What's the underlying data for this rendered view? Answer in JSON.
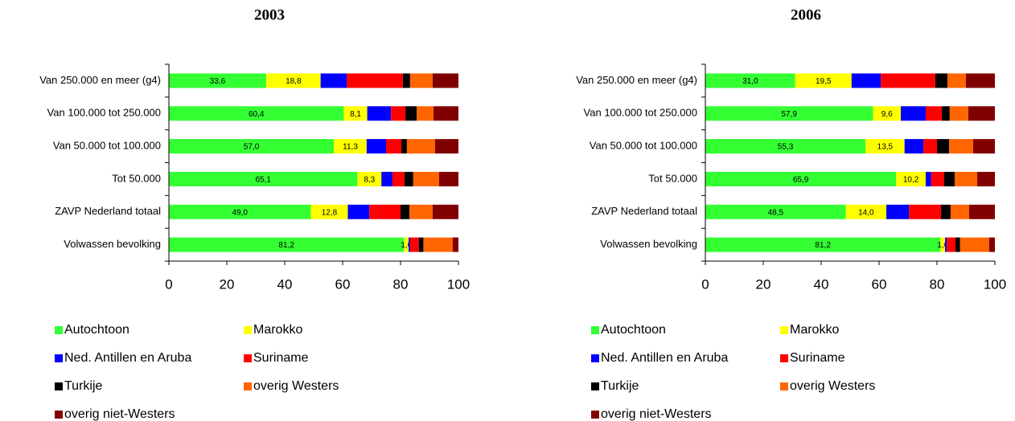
{
  "chart_data": [
    {
      "type": "bar",
      "orientation": "horizontal",
      "stacked": true,
      "title": "2003",
      "categories": [
        "Van 250.000 en meer (g4)",
        "Van 100.000 tot 250.000",
        "Van 50.000 tot 100.000",
        "Tot 50.000",
        "ZAVP Nederland totaal",
        "Volwassen bevolking"
      ],
      "xlim": [
        0,
        100
      ],
      "xticks": [
        0,
        20,
        40,
        60,
        80,
        100
      ],
      "grid": false,
      "series": [
        {
          "name": "Autochtoon",
          "color": "#33ff33",
          "values": [
            33.6,
            60.4,
            57.0,
            65.1,
            49.0,
            81.2
          ],
          "value_labels": [
            "33,6",
            "60,4",
            "57,0",
            "65,1",
            "49,0",
            "81,2"
          ]
        },
        {
          "name": "Marokko",
          "color": "#ffff00",
          "values": [
            18.8,
            8.1,
            11.3,
            8.3,
            12.8,
            1.6
          ],
          "value_labels": [
            "18,8",
            "8,1",
            "11,3",
            "8,3",
            "12,8",
            "1,6"
          ]
        },
        {
          "name": "Ned. Antillen en Aruba",
          "color": "#0000ff",
          "values": [
            9.0,
            8.2,
            6.7,
            3.8,
            7.4,
            0.5
          ]
        },
        {
          "name": "Suriname",
          "color": "#ff0000",
          "values": [
            19.4,
            5.0,
            5.3,
            4.2,
            10.8,
            3.0
          ]
        },
        {
          "name": "Turkije",
          "color": "#000000",
          "values": [
            2.5,
            3.9,
            1.9,
            3.0,
            3.1,
            1.6
          ]
        },
        {
          "name": "overig Westers",
          "color": "#ff6600",
          "values": [
            7.8,
            5.8,
            9.7,
            8.9,
            8.0,
            10.1
          ]
        },
        {
          "name": "overig niet-Westers",
          "color": "#800000",
          "values": [
            8.9,
            8.6,
            8.1,
            6.7,
            8.9,
            2.0
          ]
        }
      ]
    },
    {
      "type": "bar",
      "orientation": "horizontal",
      "stacked": true,
      "title": "2006",
      "categories": [
        "Van 250.000 en meer (g4)",
        "Van 100.000 tot 250.000",
        "Van 50.000 tot 100.000",
        "Tot 50.000",
        "ZAVP Nederland totaal",
        "Volwassen bevolking"
      ],
      "xlim": [
        0,
        100
      ],
      "xticks": [
        0,
        20,
        40,
        60,
        80,
        100
      ],
      "grid": false,
      "series": [
        {
          "name": "Autochtoon",
          "color": "#33ff33",
          "values": [
            31.0,
            57.9,
            55.3,
            65.9,
            48.5,
            81.2
          ],
          "value_labels": [
            "31,0",
            "57,9",
            "55,3",
            "65,9",
            "48,5",
            "81,2"
          ]
        },
        {
          "name": "Marokko",
          "color": "#ffff00",
          "values": [
            19.5,
            9.6,
            13.5,
            10.2,
            14.0,
            1.6
          ],
          "value_labels": [
            "19,5",
            "9,6",
            "13,5",
            "10,2",
            "14,0",
            "1,6"
          ]
        },
        {
          "name": "Ned. Antillen en Aruba",
          "color": "#0000ff",
          "values": [
            10.1,
            8.6,
            6.5,
            1.9,
            7.8,
            0.6
          ]
        },
        {
          "name": "Suriname",
          "color": "#ff0000",
          "values": [
            18.8,
            5.6,
            4.7,
            4.5,
            11.1,
            3.0
          ]
        },
        {
          "name": "Turkije",
          "color": "#000000",
          "values": [
            4.2,
            2.7,
            4.2,
            3.6,
            3.3,
            1.6
          ]
        },
        {
          "name": "overig Westers",
          "color": "#ff6600",
          "values": [
            6.4,
            6.4,
            8.3,
            7.8,
            6.4,
            10.0
          ]
        },
        {
          "name": "overig niet-Westers",
          "color": "#800000",
          "values": [
            10.0,
            9.2,
            7.5,
            6.1,
            8.9,
            2.0
          ]
        }
      ]
    }
  ]
}
